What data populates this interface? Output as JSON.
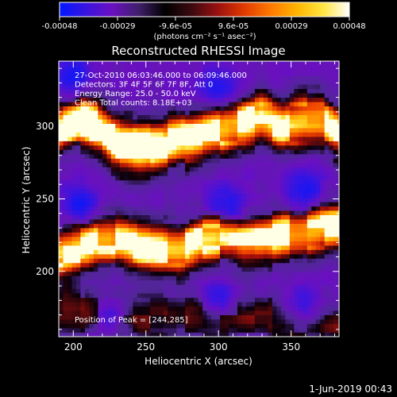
{
  "colorbar": {
    "ticks": [
      "-0.00048",
      "-0.00029",
      "-9.6e-05",
      "9.6e-05",
      "0.00029",
      "0.00048"
    ],
    "unit_label": "(photons cm⁻² s⁻¹ asec⁻²)",
    "colors": [
      "#0018ff",
      "#3a14e0",
      "#6a10c0",
      "#40206a",
      "#000000",
      "#3a0a10",
      "#9a1010",
      "#e03a00",
      "#ff7800",
      "#ffb400",
      "#ffe640",
      "#ffffff"
    ]
  },
  "chart_data": {
    "type": "heatmap",
    "title": "Reconstructed RHESSI Image",
    "xlabel": "Heliocentric X (arcsec)",
    "ylabel": "Heliocentric Y (arcsec)",
    "xlim": [
      190,
      383
    ],
    "ylim": [
      155,
      345
    ],
    "xticks": [
      200,
      250,
      300,
      350
    ],
    "yticks": [
      200,
      250,
      300
    ],
    "annotations": [
      "27-Oct-2010 06:03:46.000 to 06:09:46.000",
      "Detectors: 3F 4F 5F 6F 7F 8F, Att 0",
      "Energy Range: 25.0 - 50.0 keV",
      "Clean     Total counts: 8.18E+03"
    ],
    "peak_label": "Position of Peak = [244,285]",
    "peak": [
      244,
      285
    ],
    "bands": [
      {
        "y": [
          298,
          305,
          300,
          288,
          285,
          287,
          290,
          294,
          298,
          302,
          306,
          300,
          304,
          305,
          295
        ],
        "strength": 0.95
      },
      {
        "y": [
          213,
          216,
          222,
          222,
          217,
          216,
          215,
          222,
          224,
          221,
          222,
          225,
          226,
          230,
          232
        ],
        "strength": 0.85
      },
      {
        "y": [
          175,
          172,
          170,
          168,
          168,
          168,
          168,
          170,
          170,
          170,
          168,
          166,
          165,
          165,
          162
        ],
        "strength": 0.12
      }
    ],
    "band_x": [
      190,
      204,
      218,
      232,
      246,
      260,
      274,
      288,
      302,
      316,
      330,
      344,
      358,
      372,
      383
    ],
    "blue_spots": [
      [
        205,
        245
      ],
      [
        305,
        245
      ],
      [
        360,
        255
      ],
      [
        200,
        335
      ],
      [
        225,
        168
      ],
      [
        300,
        180
      ],
      [
        300,
        325
      ],
      [
        360,
        175
      ]
    ]
  },
  "footer_date": "1-Jun-2019 00:43"
}
